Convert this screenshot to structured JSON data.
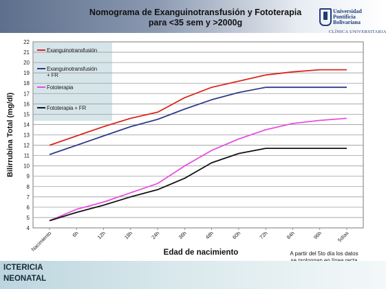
{
  "header": {
    "title": "Nomograma de Exanguinotransfusión y Fototerapia para <35 sem y >2000g",
    "logo": {
      "line1": "Universidad",
      "line2": "Pontificia",
      "line3": "Bolivariana",
      "line4": "CLÍNICA UNIVERSITARIA"
    }
  },
  "chart_data": {
    "type": "line",
    "title": "",
    "xlabel": "Edad de nacimiento",
    "ylabel": "Bilirrubina Total (mg/dl)",
    "ylim": [
      4,
      22
    ],
    "yticks": [
      4,
      5,
      6,
      7,
      8,
      9,
      10,
      11,
      12,
      13,
      14,
      15,
      16,
      17,
      18,
      19,
      20,
      21,
      22
    ],
    "grid": true,
    "legend_position": "top-left",
    "categories": [
      "Nacimiento",
      "6h",
      "12h",
      "18h",
      "24h",
      "36h",
      "48h",
      "60h",
      "72h",
      "84h",
      "96h",
      "5días"
    ],
    "series": [
      {
        "name": "Exanguinotransfusión",
        "color": "#d9261c",
        "values": [
          12.0,
          12.9,
          13.8,
          14.6,
          15.2,
          16.6,
          17.6,
          18.2,
          18.8,
          19.1,
          19.3,
          19.3
        ]
      },
      {
        "name": "Exanguinotransfusión + FR",
        "color": "#2e3a87",
        "values": [
          11.1,
          12.0,
          12.9,
          13.8,
          14.5,
          15.5,
          16.4,
          17.1,
          17.6,
          17.6,
          17.6,
          17.6
        ]
      },
      {
        "name": "Fototerapia",
        "color": "#e64ee0",
        "values": [
          4.7,
          5.8,
          6.5,
          7.4,
          8.3,
          10.0,
          11.5,
          12.6,
          13.5,
          14.1,
          14.4,
          14.6
        ]
      },
      {
        "name": "Fototerapia + FR",
        "color": "#111111",
        "values": [
          4.7,
          5.5,
          6.2,
          7.0,
          7.7,
          8.8,
          10.3,
          11.2,
          11.7,
          11.7,
          11.7,
          11.7
        ]
      }
    ]
  },
  "note": "A partir del 5to día los datos\nse prolongan en línea recta",
  "footer": {
    "text": "ICTERICIA\nNEONATAL"
  }
}
